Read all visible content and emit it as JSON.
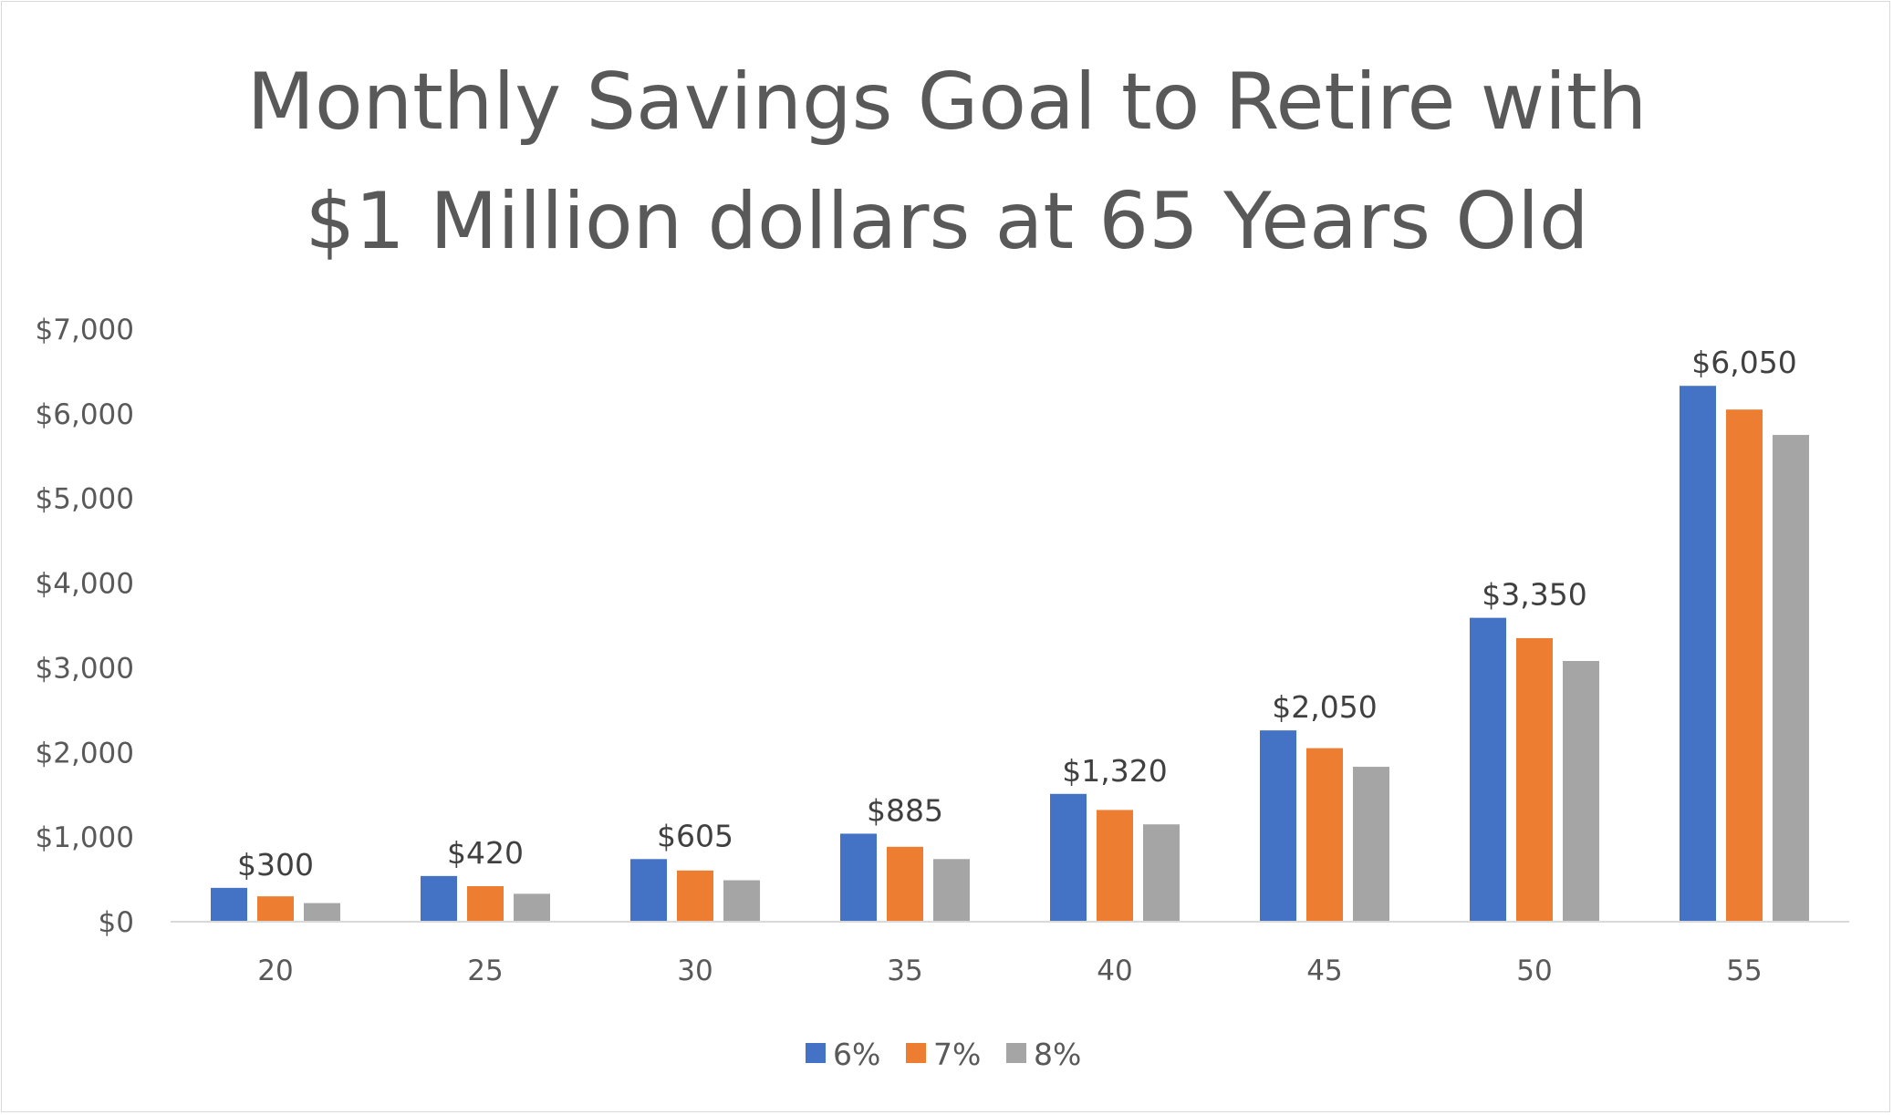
{
  "chart_data": {
    "type": "bar",
    "title_lines": [
      "Monthly Savings Goal to Retire with",
      "$1 Million dollars at 65 Years Old"
    ],
    "categories": [
      "20",
      "25",
      "30",
      "35",
      "40",
      "45",
      "50",
      "55"
    ],
    "series": [
      {
        "name": "6%",
        "color": "#4472C4",
        "values": [
          400,
          540,
          740,
          1040,
          1510,
          2260,
          3590,
          6330
        ]
      },
      {
        "name": "7%",
        "color": "#ED7D31",
        "values": [
          300,
          420,
          605,
          885,
          1320,
          2050,
          3350,
          6050
        ]
      },
      {
        "name": "8%",
        "color": "#A5A5A5",
        "values": [
          220,
          330,
          490,
          740,
          1150,
          1830,
          3080,
          5750
        ]
      }
    ],
    "data_labels": [
      "$300",
      "$420",
      "$605",
      "$885",
      "$1,320",
      "$2,050",
      "$3,350",
      "$6,050"
    ],
    "y_ticks": [
      {
        "value": 0,
        "label": "$0"
      },
      {
        "value": 1000,
        "label": "$1,000"
      },
      {
        "value": 2000,
        "label": "$2,000"
      },
      {
        "value": 3000,
        "label": "$3,000"
      },
      {
        "value": 4000,
        "label": "$4,000"
      },
      {
        "value": 5000,
        "label": "$5,000"
      },
      {
        "value": 6000,
        "label": "$6,000"
      },
      {
        "value": 7000,
        "label": "$7,000"
      }
    ],
    "ylim": [
      0,
      7000
    ],
    "xlabel": "",
    "ylabel": "",
    "grid": false,
    "legend_position": "bottom-center",
    "axis_color": "#D9D9D9"
  }
}
